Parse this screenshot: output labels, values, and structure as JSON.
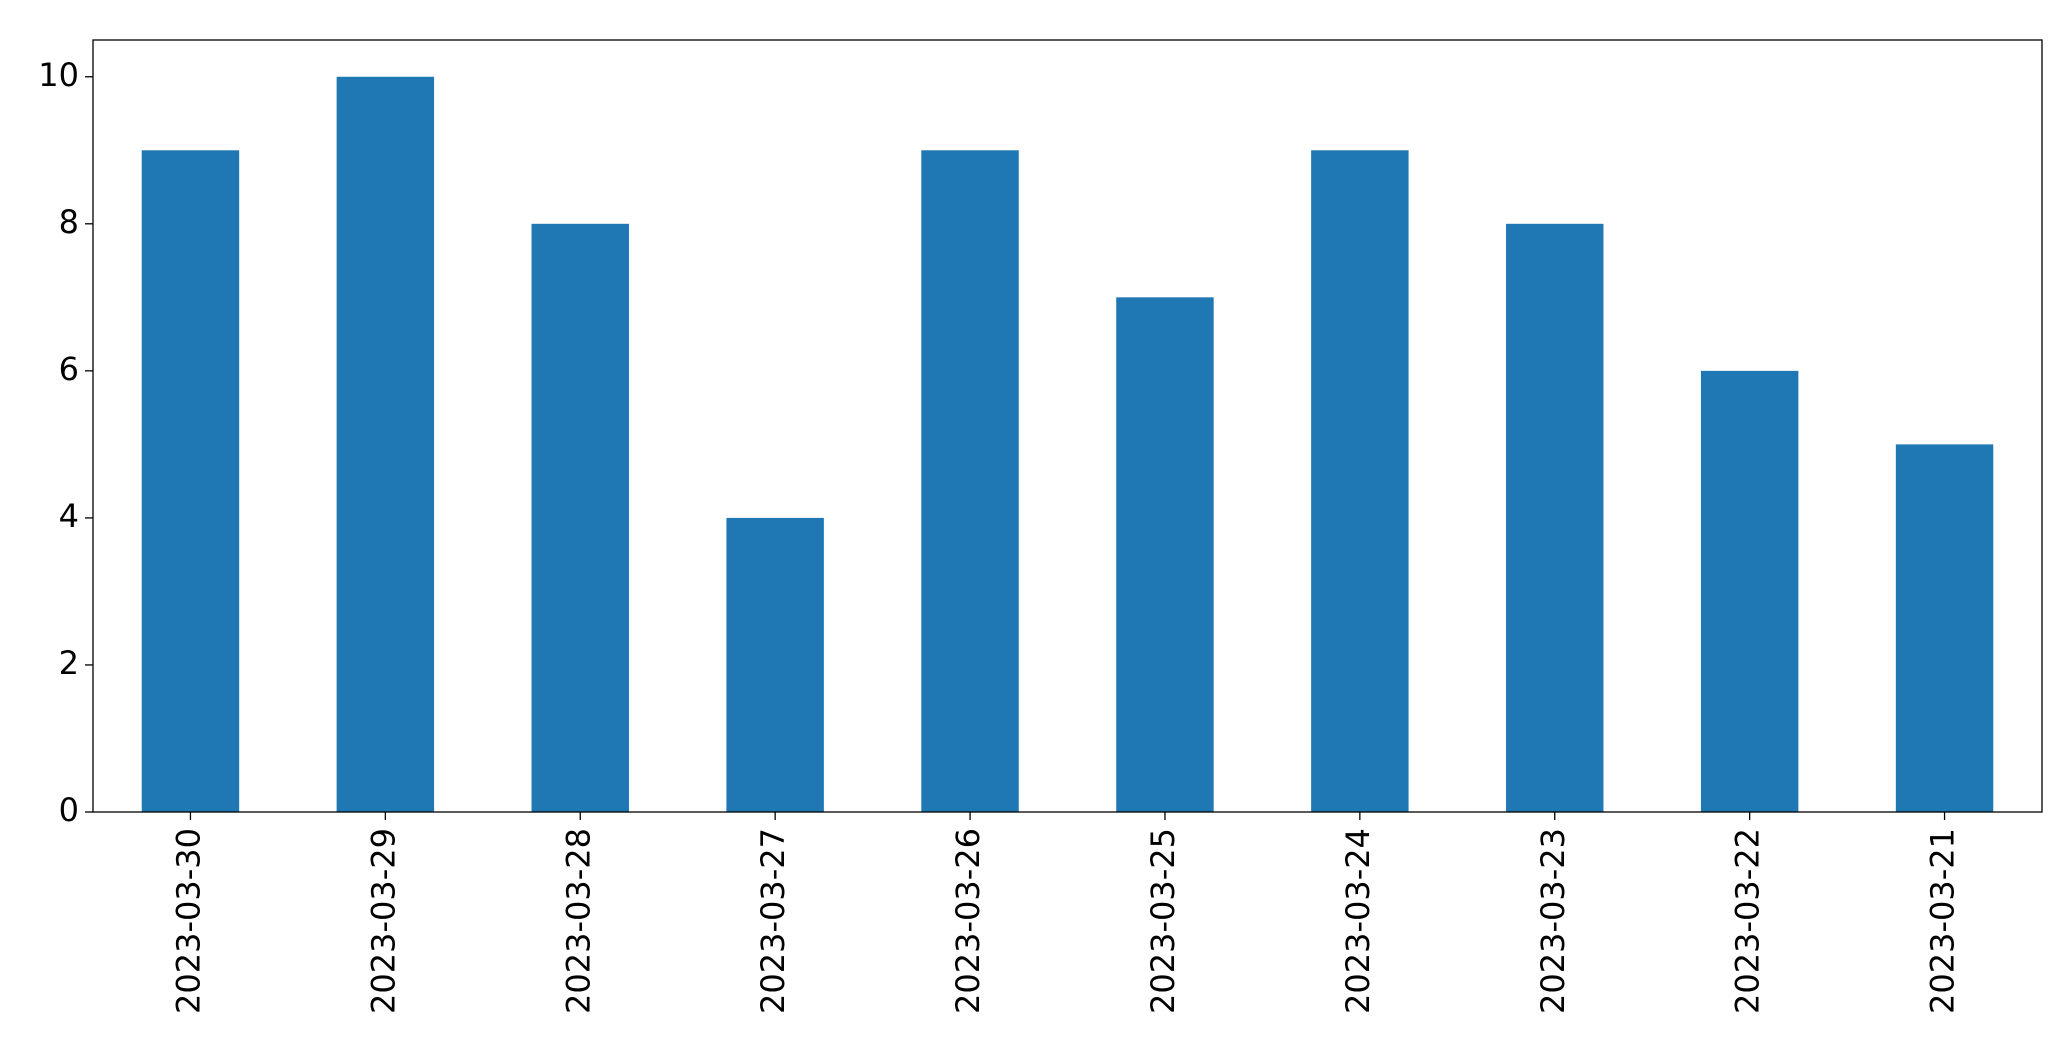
{
  "chart_data": {
    "type": "bar",
    "categories": [
      "2023-03-30",
      "2023-03-29",
      "2023-03-28",
      "2023-03-27",
      "2023-03-26",
      "2023-03-25",
      "2023-03-24",
      "2023-03-23",
      "2023-03-22",
      "2023-03-21"
    ],
    "values": [
      9,
      10,
      8,
      4,
      9,
      7,
      9,
      8,
      6,
      5
    ],
    "color": "#1f77b4",
    "ylim": [
      0,
      10.5
    ],
    "yticks": [
      0,
      2,
      4,
      6,
      8,
      10
    ],
    "grid": false
  }
}
